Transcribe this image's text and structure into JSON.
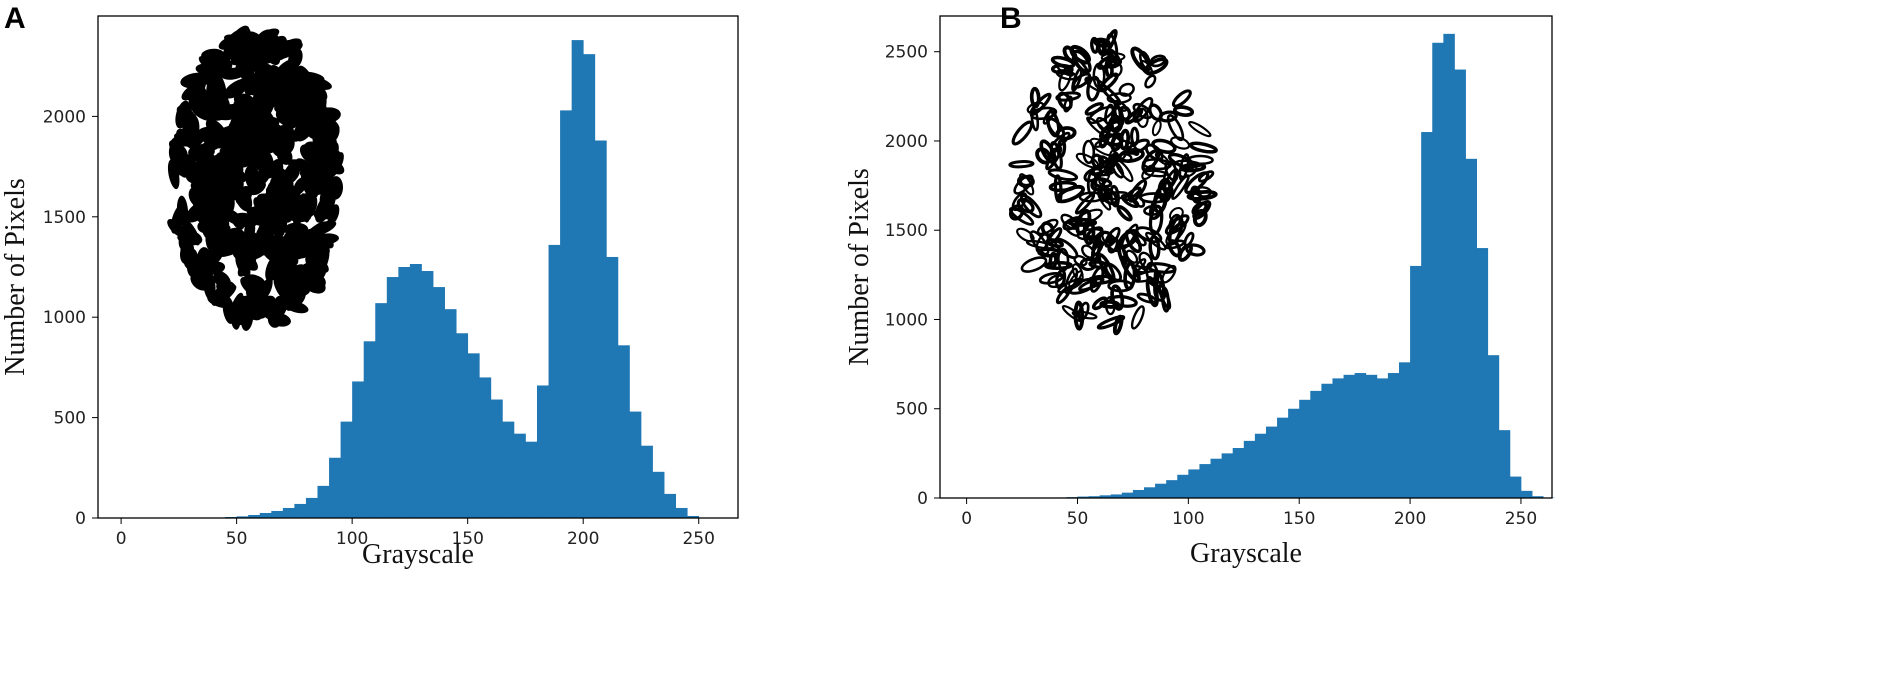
{
  "panels": [
    {
      "label": "A"
    },
    {
      "label": "B"
    }
  ],
  "colors": {
    "bar": "#1f77b4",
    "frame": "#000000",
    "inset": "#000000"
  },
  "chart_data": [
    {
      "type": "bar",
      "panel": "A",
      "title": "",
      "xlabel": "Grayscale",
      "ylabel": "Number  of  Pixels",
      "xlim": [
        -10,
        267
      ],
      "ylim": [
        0,
        2500
      ],
      "xticks": [
        0,
        50,
        100,
        150,
        200,
        250
      ],
      "yticks": [
        0,
        500,
        1000,
        1500,
        2000
      ],
      "grid": false,
      "inset": "binary thresholded image of chromosome spread (black on white)",
      "series": [
        {
          "bins": {
            "start": 40,
            "step": 5
          },
          "values": [
            0,
            5,
            8,
            15,
            25,
            35,
            50,
            70,
            100,
            160,
            300,
            480,
            680,
            880,
            1070,
            1200,
            1250,
            1265,
            1230,
            1150,
            1040,
            920,
            820,
            700,
            590,
            480,
            420,
            380,
            660,
            1360,
            2030,
            2380,
            2310,
            1880,
            1300,
            860,
            530,
            360,
            230,
            120,
            50,
            10,
            2,
            0,
            0
          ]
        }
      ]
    },
    {
      "type": "bar",
      "panel": "B",
      "title": "",
      "xlabel": "Grayscale",
      "ylabel": "Number  of  Pixels",
      "xlim": [
        -12,
        264
      ],
      "ylim": [
        0,
        2700
      ],
      "xticks": [
        0,
        50,
        100,
        150,
        200,
        250
      ],
      "yticks": [
        0,
        500,
        1000,
        1500,
        2000,
        2500
      ],
      "grid": false,
      "inset": "binary thresholded image of chromosome spread (black on white)",
      "series": [
        {
          "bins": {
            "start": 35,
            "step": 5
          },
          "values": [
            0,
            3,
            5,
            8,
            10,
            15,
            20,
            30,
            45,
            60,
            80,
            100,
            130,
            160,
            190,
            220,
            250,
            280,
            320,
            360,
            400,
            450,
            500,
            550,
            600,
            640,
            670,
            690,
            700,
            690,
            670,
            700,
            760,
            1300,
            2050,
            2550,
            2600,
            2400,
            1900,
            1400,
            800,
            380,
            120,
            40,
            10,
            2,
            0
          ]
        }
      ]
    }
  ]
}
